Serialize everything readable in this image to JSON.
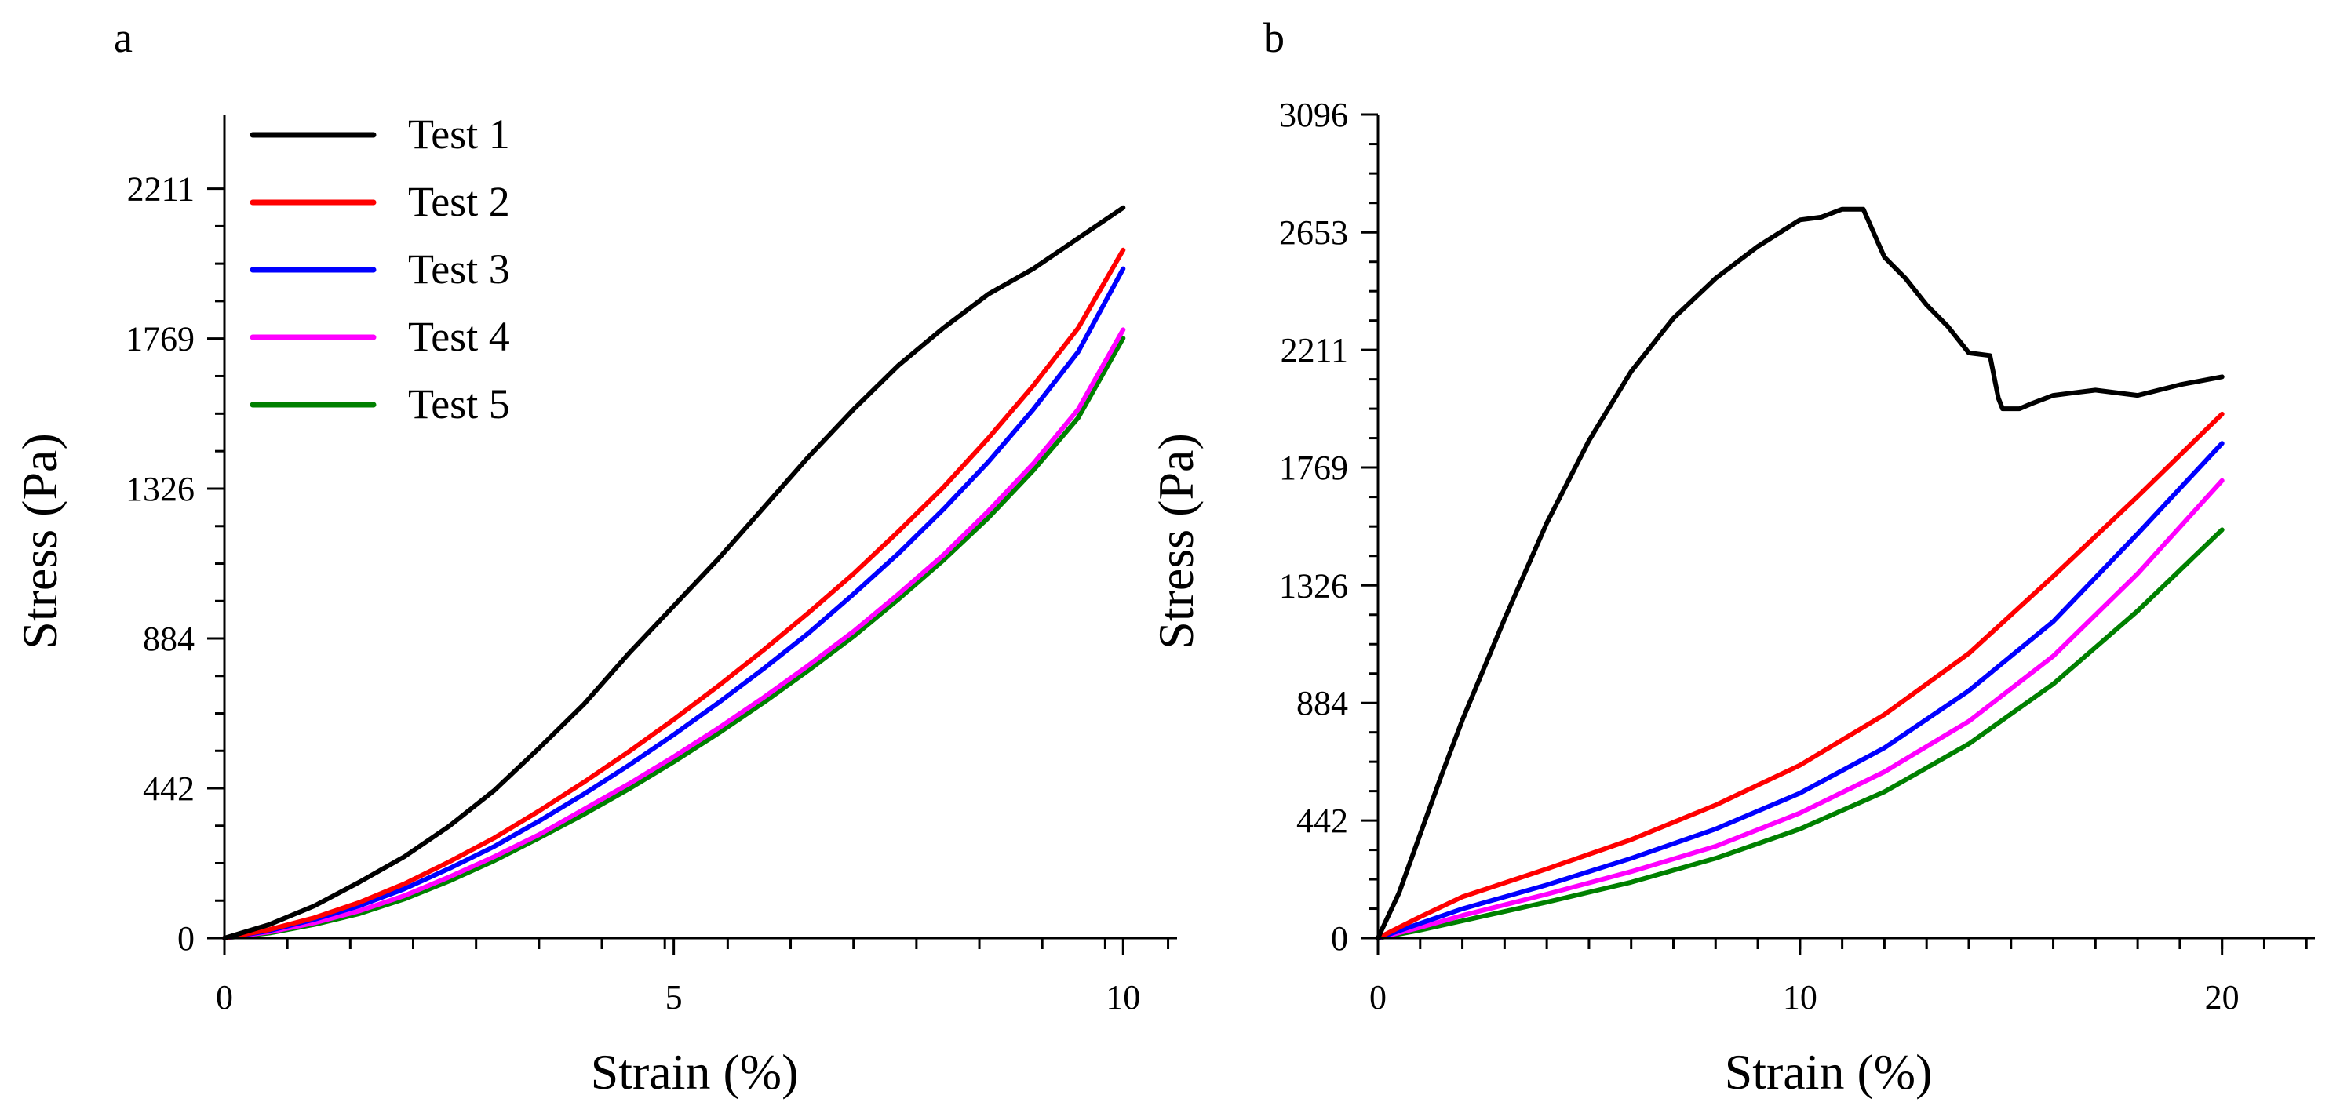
{
  "panels": [
    {
      "id": "a",
      "label": "a",
      "chart_data": {
        "type": "line",
        "xlabel": "Strain (%)",
        "ylabel": "Stress (Pa)",
        "xlim": [
          0,
          10.6
        ],
        "ylim": [
          0,
          2430
        ],
        "xticks": [
          0,
          5,
          10
        ],
        "xtick_labels": [
          "0",
          "5",
          "10"
        ],
        "yticks": [
          0,
          442,
          884,
          1326,
          1769,
          2211
        ],
        "ytick_labels": [
          "0",
          "442",
          "884",
          "1326",
          "1769",
          "2211"
        ],
        "legend_position": "top-left",
        "series": [
          {
            "name": "Test 1",
            "color": "#000000",
            "x": [
              0,
              0.5,
              1,
              1.5,
              2,
              2.5,
              3,
              3.5,
              4,
              4.5,
              5,
              5.5,
              6,
              6.5,
              7,
              7.5,
              8,
              8.5,
              9,
              9.5,
              10
            ],
            "y": [
              0,
              40,
              95,
              165,
              240,
              330,
              435,
              560,
              690,
              840,
              980,
              1120,
              1270,
              1420,
              1560,
              1690,
              1800,
              1900,
              1975,
              2065,
              2155
            ]
          },
          {
            "name": "Test 2",
            "color": "#ff0000",
            "x": [
              0,
              0.5,
              1,
              1.5,
              2,
              2.5,
              3,
              3.5,
              4,
              4.5,
              5,
              5.5,
              6,
              6.5,
              7,
              7.5,
              8,
              8.5,
              9,
              9.5,
              10
            ],
            "y": [
              0,
              25,
              60,
              105,
              160,
              225,
              295,
              375,
              460,
              550,
              645,
              745,
              850,
              960,
              1075,
              1200,
              1330,
              1475,
              1630,
              1800,
              2030
            ]
          },
          {
            "name": "Test 3",
            "color": "#0000ff",
            "x": [
              0,
              0.5,
              1,
              1.5,
              2,
              2.5,
              3,
              3.5,
              4,
              4.5,
              5,
              5.5,
              6,
              6.5,
              7,
              7.5,
              8,
              8.5,
              9,
              9.5,
              10
            ],
            "y": [
              0,
              22,
              55,
              95,
              145,
              205,
              270,
              345,
              425,
              510,
              600,
              695,
              795,
              900,
              1015,
              1135,
              1265,
              1405,
              1560,
              1730,
              1975
            ]
          },
          {
            "name": "Test 4",
            "color": "#ff00ff",
            "x": [
              0,
              0.5,
              1,
              1.5,
              2,
              2.5,
              3,
              3.5,
              4,
              4.5,
              5,
              5.5,
              6,
              6.5,
              7,
              7.5,
              8,
              8.5,
              9,
              9.5,
              10
            ],
            "y": [
              0,
              18,
              45,
              80,
              125,
              180,
              240,
              305,
              380,
              455,
              535,
              620,
              710,
              805,
              905,
              1015,
              1130,
              1260,
              1400,
              1560,
              1795
            ]
          },
          {
            "name": "Test 5",
            "color": "#008000",
            "x": [
              0,
              0.5,
              1,
              1.5,
              2,
              2.5,
              3,
              3.5,
              4,
              4.5,
              5,
              5.5,
              6,
              6.5,
              7,
              7.5,
              8,
              8.5,
              9,
              9.5,
              10
            ],
            "y": [
              0,
              15,
              40,
              72,
              115,
              168,
              228,
              295,
              365,
              440,
              520,
              605,
              695,
              790,
              890,
              1000,
              1115,
              1240,
              1380,
              1535,
              1770
            ]
          }
        ]
      }
    },
    {
      "id": "b",
      "label": "b",
      "chart_data": {
        "type": "line",
        "xlabel": "Strain (%)",
        "ylabel": "Stress (Pa)",
        "xlim": [
          0,
          22.2
        ],
        "ylim": [
          0,
          3096
        ],
        "xticks": [
          0,
          10,
          20
        ],
        "xtick_labels": [
          "0",
          "10",
          "20"
        ],
        "yticks": [
          0,
          442,
          884,
          1326,
          1769,
          2211,
          2653,
          3096
        ],
        "ytick_labels": [
          "0",
          "442",
          "884",
          "1326",
          "1769",
          "2211",
          "2653",
          "3096"
        ],
        "series": [
          {
            "name": "Test 1",
            "color": "#000000",
            "x": [
              0,
              0.5,
              1,
              1.5,
              2,
              3,
              4,
              5,
              6,
              7,
              8,
              9,
              10,
              10.5,
              11,
              11.5,
              12,
              12.5,
              13,
              13.5,
              14,
              14.5,
              14.7,
              14.8,
              15.2,
              15.5,
              16,
              16.5,
              17,
              18,
              19,
              20
            ],
            "y": [
              0,
              170,
              390,
              610,
              820,
              1200,
              1560,
              1870,
              2130,
              2330,
              2480,
              2600,
              2700,
              2710,
              2740,
              2740,
              2560,
              2480,
              2380,
              2300,
              2200,
              2190,
              2030,
              1990,
              1990,
              2010,
              2040,
              2050,
              2060,
              2040,
              2080,
              2110
            ]
          },
          {
            "name": "Test 2",
            "color": "#ff0000",
            "x": [
              0,
              1,
              2,
              4,
              6,
              8,
              10,
              12,
              14,
              16,
              18,
              20
            ],
            "y": [
              0,
              80,
              155,
              260,
              370,
              500,
              650,
              840,
              1070,
              1360,
              1660,
              1970
            ]
          },
          {
            "name": "Test 3",
            "color": "#0000ff",
            "x": [
              0,
              1,
              2,
              4,
              6,
              8,
              10,
              12,
              14,
              16,
              18,
              20
            ],
            "y": [
              0,
              55,
              110,
              200,
              300,
              410,
              545,
              715,
              930,
              1190,
              1520,
              1860
            ]
          },
          {
            "name": "Test 4",
            "color": "#ff00ff",
            "x": [
              0,
              1,
              2,
              4,
              6,
              8,
              10,
              12,
              14,
              16,
              18,
              20
            ],
            "y": [
              0,
              40,
              85,
              165,
              250,
              345,
              470,
              625,
              815,
              1060,
              1370,
              1720
            ]
          },
          {
            "name": "Test 5",
            "color": "#008000",
            "x": [
              0,
              1,
              2,
              4,
              6,
              8,
              10,
              12,
              14,
              16,
              18,
              20
            ],
            "y": [
              0,
              30,
              65,
              135,
              210,
              300,
              410,
              550,
              730,
              955,
              1230,
              1535
            ]
          }
        ]
      }
    }
  ]
}
